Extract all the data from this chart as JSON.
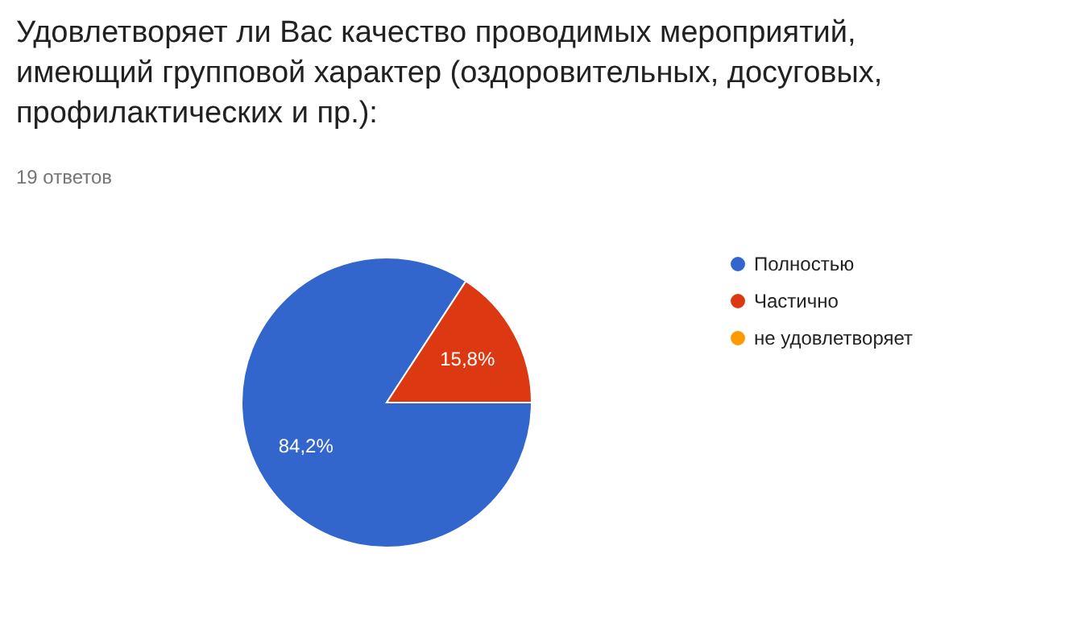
{
  "chart_data": {
    "type": "pie",
    "title": "Удовлетворяет ли Вас качество проводимых мероприятий, имеющий групповой характер (оздоровительных, досуговых, профилактических и пр.):",
    "subtitle": "19 ответов",
    "categories": [
      "Полностью",
      "Частично",
      "не удовлетворяет"
    ],
    "values": [
      84.2,
      15.8,
      0
    ],
    "colors": [
      "#3366cc",
      "#dc3912",
      "#ff9900"
    ],
    "value_labels": [
      "84,2%",
      "15,8%",
      null
    ],
    "legend": "right"
  }
}
